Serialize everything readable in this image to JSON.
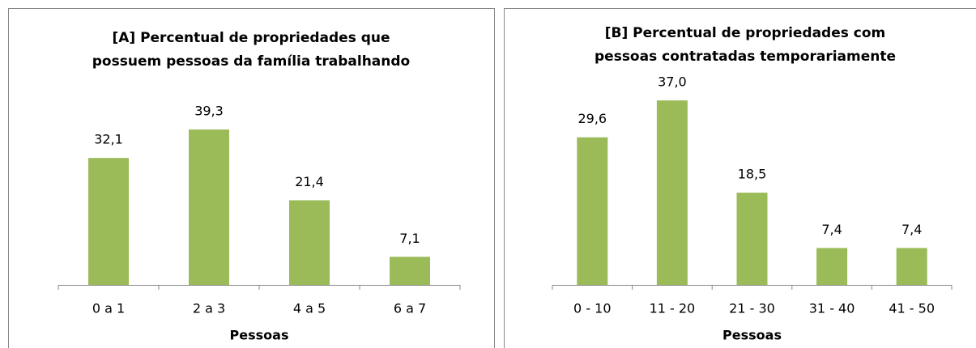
{
  "chart_data": [
    {
      "type": "bar",
      "title": [
        "[A] Percentual de propriedades que",
        "possuem pessoas da família trabalhando"
      ],
      "x_label": "Pessoas",
      "categories": [
        "0 a 1",
        "2 a 3",
        "4 a 5",
        "6 a 7"
      ],
      "values": [
        32.1,
        39.3,
        21.4,
        7.1
      ],
      "value_labels": [
        "32,1",
        "39,3",
        "21,4",
        "7,1"
      ],
      "color": "#9bbb59"
    },
    {
      "type": "bar",
      "title": [
        "[B] Percentual de propriedades com",
        "pessoas contratadas temporariamente"
      ],
      "x_label": "Pessoas",
      "categories": [
        "0 - 10",
        "11 - 20",
        "21 - 30",
        "31 - 40",
        "41 - 50"
      ],
      "values": [
        29.6,
        37.0,
        18.5,
        7.4,
        7.4
      ],
      "value_labels": [
        "29,6",
        "37,0",
        "18,5",
        "7,4",
        "7,4"
      ],
      "color": "#9bbb59"
    }
  ]
}
